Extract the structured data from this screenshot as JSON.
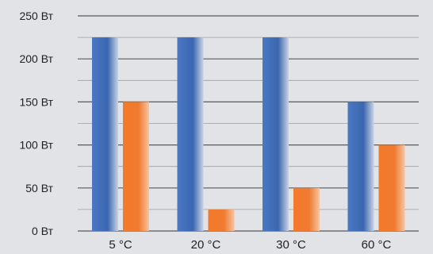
{
  "chart_data": {
    "type": "bar",
    "title": "",
    "xlabel": "",
    "ylabel": "",
    "categories": [
      "5 °C",
      "20 °C",
      "30 °C",
      "60 °C"
    ],
    "series": [
      {
        "values": [
          225,
          225,
          225,
          150
        ],
        "color": "#3f6eb8"
      },
      {
        "values": [
          150,
          25,
          50,
          100
        ],
        "color": "#f2782a"
      }
    ],
    "ylim": [
      0,
      250
    ],
    "yticks": [
      {
        "value": 0,
        "label": "0 Вт"
      },
      {
        "value": 50,
        "label": "50 Вт"
      },
      {
        "value": 100,
        "label": "100 Вт"
      },
      {
        "value": 150,
        "label": "150 Вт"
      },
      {
        "value": 200,
        "label": "200 Вт"
      },
      {
        "value": 250,
        "label": "250 Вт"
      }
    ],
    "grid": true,
    "legend": "none"
  }
}
